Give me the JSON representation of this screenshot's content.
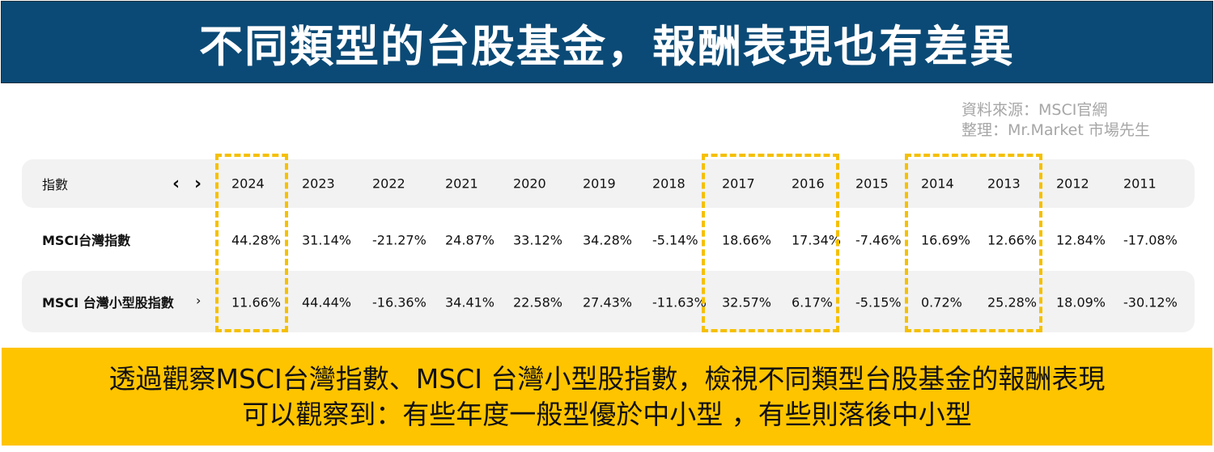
{
  "title": "不同類型的台股基金，報酬表現也有差異",
  "source": {
    "line1": "資料來源：MSCI官網",
    "line2": "整理：Mr.Market 市場先生"
  },
  "table": {
    "header_label": "指數",
    "nav_prev": "‹",
    "nav_next": "›",
    "years": [
      "2024",
      "2023",
      "2022",
      "2021",
      "2020",
      "2019",
      "2018",
      "2017",
      "2016",
      "2015",
      "2014",
      "2013",
      "2012",
      "2011"
    ],
    "rows": [
      {
        "label": "MSCI台灣指數",
        "values": [
          "44.28%",
          "31.14%",
          "-21.27%",
          "24.87%",
          "33.12%",
          "34.28%",
          "-5.14%",
          "18.66%",
          "17.34%",
          "-7.46%",
          "16.69%",
          "12.66%",
          "12.84%",
          "-17.08%"
        ]
      },
      {
        "label": "MSCI 台灣小型股指數",
        "chevron": "›",
        "values": [
          "11.66%",
          "44.44%",
          "-16.36%",
          "34.41%",
          "22.58%",
          "27.43%",
          "-11.63%",
          "32.57%",
          "6.17%",
          "-5.15%",
          "0.72%",
          "25.28%",
          "18.09%",
          "-30.12%"
        ]
      }
    ],
    "highlighted_years": [
      "2024",
      "2017",
      "2016",
      "2014",
      "2013"
    ],
    "highlight_color": "#f5c000"
  },
  "footer": {
    "line1": "透過觀察MSCI台灣指數、MSCI 台灣小型股指數，檢視不同類型台股基金的報酬表現",
    "line2": "可以觀察到：有些年度一般型優於中小型 ，有些則落後中小型"
  },
  "colors": {
    "title_bg": "#0b4a76",
    "footer_bg": "#ffc400",
    "row_band": "#f2f2f2"
  }
}
